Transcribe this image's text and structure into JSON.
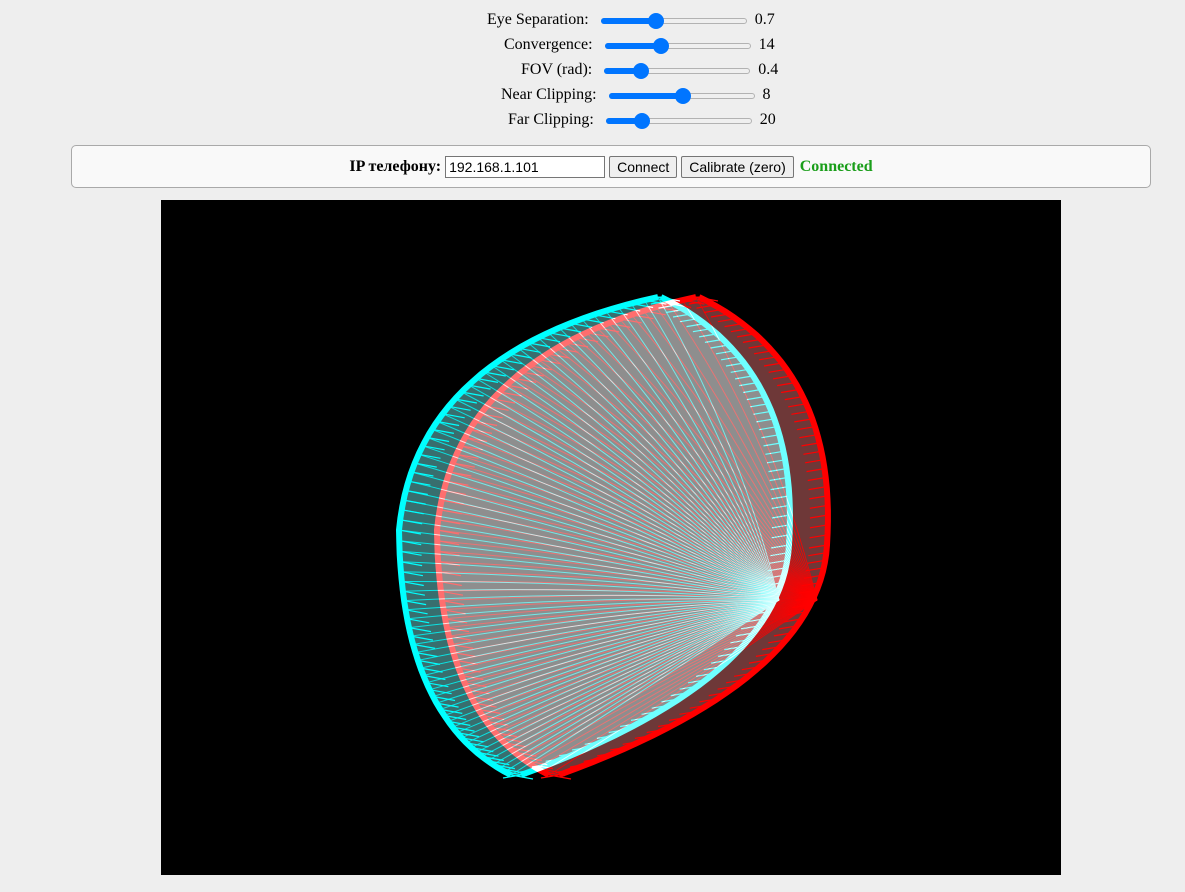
{
  "controls": [
    {
      "id": "eye-separation",
      "label": "Eye Separation:",
      "value": "0.7",
      "level": 0.36
    },
    {
      "id": "convergence",
      "label": "Convergence:",
      "value": "14",
      "level": 0.37
    },
    {
      "id": "fov",
      "label": "FOV (rad):",
      "value": "0.4",
      "level": 0.22
    },
    {
      "id": "near-clipping",
      "label": "Near Clipping:",
      "value": "8",
      "level": 0.51
    },
    {
      "id": "far-clipping",
      "label": "Far Clipping:",
      "value": "20",
      "level": 0.22
    }
  ],
  "connection": {
    "label": "IP телефону:",
    "ip_value": "192.168.1.101",
    "connect_label": "Connect",
    "calibrate_label": "Calibrate (zero)",
    "status": "Connected",
    "status_color": "#1a9e1a"
  },
  "viewport": {
    "background": "#000000",
    "left_eye_color": "#00ffff",
    "right_eye_color": "#ff0000"
  }
}
